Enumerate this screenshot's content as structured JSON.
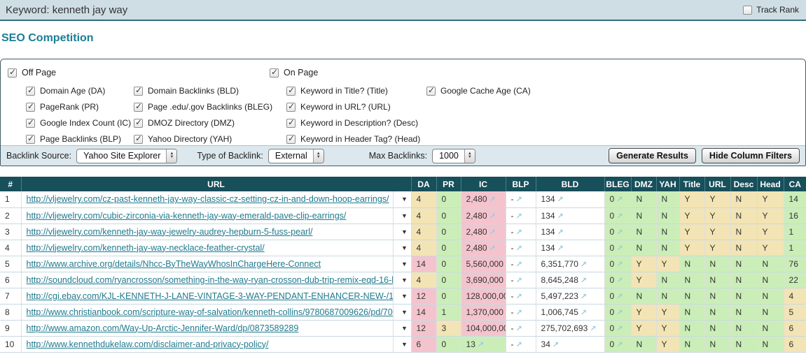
{
  "header": {
    "keyword_label": "Keyword: kenneth jay way",
    "track_rank_label": "Track Rank"
  },
  "page_title": "SEO Competition",
  "filters": {
    "off_page": {
      "label": "Off Page",
      "items": [
        "Domain Age (DA)",
        "PageRank (PR)",
        "Google Index Count (IC)",
        "Page Backlinks (BLP)",
        "Domain Backlinks (BLD)",
        "Page .edu/.gov Backlinks (BLEG)",
        "DMOZ Directory (DMZ)",
        "Yahoo Directory (YAH)"
      ]
    },
    "on_page": {
      "label": "On Page",
      "items": [
        "Keyword in Title? (Title)",
        "Keyword in URL? (URL)",
        "Keyword in Description? (Desc)",
        "Keyword in Header Tag? (Head)",
        "Google Cache Age (CA)"
      ]
    }
  },
  "toolbar": {
    "backlink_source_label": "Backlink Source:",
    "backlink_source_value": "Yahoo Site Explorer",
    "type_label": "Type of Backlink:",
    "type_value": "External",
    "max_label": "Max Backlinks:",
    "max_value": "1000",
    "generate_button": "Generate Results",
    "hide_filters_button": "Hide Column Filters"
  },
  "colors": {
    "header_teal": "#174f5a",
    "good_green": "#cbeeb9",
    "warn_tan": "#f2e4b4",
    "bad_pink": "#f4c4ce",
    "link_teal": "#1e7a8e",
    "arrow_blue": "#9ccbd9"
  },
  "table": {
    "columns": [
      "#",
      "URL",
      "DA",
      "PR",
      "IC",
      "BLP",
      "BLD",
      "BLEG",
      "DMZ",
      "YAH",
      "Title",
      "URL",
      "Desc",
      "Head",
      "CA"
    ],
    "rows": [
      {
        "num": "1",
        "url": "http://vljewelry.com/cz-past-kenneth-jay-way-classic-cz-setting-cz-in-and-down-hoop-earrings/",
        "da": [
          "4",
          "tan"
        ],
        "pr": [
          "0",
          "green"
        ],
        "ic": [
          "2,480",
          "pink"
        ],
        "blp": [
          "-",
          "white"
        ],
        "bld": [
          "134",
          "white"
        ],
        "bleg": [
          "0",
          "green"
        ],
        "dmz": [
          "N",
          "green"
        ],
        "yah": [
          "N",
          "green"
        ],
        "title": [
          "Y",
          "tan"
        ],
        "url2": [
          "Y",
          "tan"
        ],
        "desc": [
          "N",
          "tan"
        ],
        "head": [
          "Y",
          "tan"
        ],
        "ca": [
          "14",
          "green"
        ]
      },
      {
        "num": "2",
        "url": "http://vljewelry.com/cubic-zirconia-via-kenneth-jay-way-emerald-pave-clip-earrings/",
        "da": [
          "4",
          "tan"
        ],
        "pr": [
          "0",
          "green"
        ],
        "ic": [
          "2,480",
          "pink"
        ],
        "blp": [
          "-",
          "white"
        ],
        "bld": [
          "134",
          "white"
        ],
        "bleg": [
          "0",
          "green"
        ],
        "dmz": [
          "N",
          "green"
        ],
        "yah": [
          "N",
          "green"
        ],
        "title": [
          "Y",
          "tan"
        ],
        "url2": [
          "Y",
          "tan"
        ],
        "desc": [
          "N",
          "tan"
        ],
        "head": [
          "Y",
          "tan"
        ],
        "ca": [
          "16",
          "green"
        ]
      },
      {
        "num": "3",
        "url": "http://vljewelry.com/kenneth-jay-way-jewelry-audrey-hepburn-5-fuss-pearl/",
        "da": [
          "4",
          "tan"
        ],
        "pr": [
          "0",
          "green"
        ],
        "ic": [
          "2,480",
          "pink"
        ],
        "blp": [
          "-",
          "white"
        ],
        "bld": [
          "134",
          "white"
        ],
        "bleg": [
          "0",
          "green"
        ],
        "dmz": [
          "N",
          "green"
        ],
        "yah": [
          "N",
          "green"
        ],
        "title": [
          "Y",
          "tan"
        ],
        "url2": [
          "Y",
          "tan"
        ],
        "desc": [
          "N",
          "tan"
        ],
        "head": [
          "Y",
          "tan"
        ],
        "ca": [
          "1",
          "green"
        ]
      },
      {
        "num": "4",
        "url": "http://vljewelry.com/kenneth-jay-way-necklace-feather-crystal/",
        "da": [
          "4",
          "tan"
        ],
        "pr": [
          "0",
          "green"
        ],
        "ic": [
          "2,480",
          "pink"
        ],
        "blp": [
          "-",
          "white"
        ],
        "bld": [
          "134",
          "white"
        ],
        "bleg": [
          "0",
          "green"
        ],
        "dmz": [
          "N",
          "green"
        ],
        "yah": [
          "N",
          "green"
        ],
        "title": [
          "Y",
          "tan"
        ],
        "url2": [
          "Y",
          "tan"
        ],
        "desc": [
          "N",
          "tan"
        ],
        "head": [
          "Y",
          "tan"
        ],
        "ca": [
          "1",
          "green"
        ]
      },
      {
        "num": "5",
        "url": "http://www.archive.org/details/Nhcc-ByTheWayWhosInChargeHere-Connect",
        "da": [
          "14",
          "pink"
        ],
        "pr": [
          "0",
          "green"
        ],
        "ic": [
          "5,560,000",
          "pink"
        ],
        "blp": [
          "-",
          "white"
        ],
        "bld": [
          "6,351,770",
          "white"
        ],
        "bleg": [
          "0",
          "green"
        ],
        "dmz": [
          "Y",
          "tan"
        ],
        "yah": [
          "Y",
          "tan"
        ],
        "title": [
          "N",
          "green"
        ],
        "url2": [
          "N",
          "green"
        ],
        "desc": [
          "N",
          "green"
        ],
        "head": [
          "N",
          "green"
        ],
        "ca": [
          "76",
          "green"
        ]
      },
      {
        "num": "6",
        "url": "http://soundcloud.com/ryancrosson/something-in-the-way-ryan-crosson-dub-trip-remix-eqd-16-b",
        "da": [
          "4",
          "tan"
        ],
        "pr": [
          "0",
          "green"
        ],
        "ic": [
          "3,690,000",
          "pink"
        ],
        "blp": [
          "-",
          "white"
        ],
        "bld": [
          "8,645,248",
          "white"
        ],
        "bleg": [
          "0",
          "green"
        ],
        "dmz": [
          "Y",
          "tan"
        ],
        "yah": [
          "N",
          "green"
        ],
        "title": [
          "N",
          "green"
        ],
        "url2": [
          "N",
          "green"
        ],
        "desc": [
          "N",
          "green"
        ],
        "head": [
          "N",
          "green"
        ],
        "ca": [
          "22",
          "green"
        ]
      },
      {
        "num": "7",
        "url": "http://cgi.ebay.com/KJL-KENNETH-J-LANE-VINTAGE-3-WAY-PENDANT-ENHANCER-NEW-/1304",
        "da": [
          "12",
          "pink"
        ],
        "pr": [
          "0",
          "green"
        ],
        "ic": [
          "128,000,000",
          "pink"
        ],
        "blp": [
          "-",
          "white"
        ],
        "bld": [
          "5,497,223",
          "white"
        ],
        "bleg": [
          "0",
          "green"
        ],
        "dmz": [
          "N",
          "green"
        ],
        "yah": [
          "N",
          "green"
        ],
        "title": [
          "N",
          "green"
        ],
        "url2": [
          "N",
          "green"
        ],
        "desc": [
          "N",
          "green"
        ],
        "head": [
          "N",
          "green"
        ],
        "ca": [
          "4",
          "tan"
        ]
      },
      {
        "num": "8",
        "url": "http://www.christianbook.com/scripture-way-of-salvation/kenneth-collins/9780687009626/pd/700",
        "da": [
          "14",
          "pink"
        ],
        "pr": [
          "1",
          "green"
        ],
        "ic": [
          "1,370,000",
          "pink"
        ],
        "blp": [
          "-",
          "white"
        ],
        "bld": [
          "1,006,745",
          "white"
        ],
        "bleg": [
          "0",
          "green"
        ],
        "dmz": [
          "Y",
          "tan"
        ],
        "yah": [
          "Y",
          "tan"
        ],
        "title": [
          "N",
          "green"
        ],
        "url2": [
          "N",
          "green"
        ],
        "desc": [
          "N",
          "green"
        ],
        "head": [
          "N",
          "green"
        ],
        "ca": [
          "5",
          "tan"
        ]
      },
      {
        "num": "9",
        "url": "http://www.amazon.com/Way-Up-Arctic-Jennifer-Ward/dp/0873589289",
        "da": [
          "12",
          "pink"
        ],
        "pr": [
          "3",
          "tan"
        ],
        "ic": [
          "104,000,000",
          "pink"
        ],
        "blp": [
          "-",
          "white"
        ],
        "bld": [
          "275,702,693",
          "white"
        ],
        "bleg": [
          "0",
          "green"
        ],
        "dmz": [
          "Y",
          "tan"
        ],
        "yah": [
          "Y",
          "tan"
        ],
        "title": [
          "N",
          "green"
        ],
        "url2": [
          "N",
          "green"
        ],
        "desc": [
          "N",
          "green"
        ],
        "head": [
          "N",
          "green"
        ],
        "ca": [
          "6",
          "tan"
        ]
      },
      {
        "num": "10",
        "url": "http://www.kennethdukelaw.com/disclaimer-and-privacy-policy/",
        "da": [
          "6",
          "pink"
        ],
        "pr": [
          "0",
          "green"
        ],
        "ic": [
          "13",
          "green"
        ],
        "blp": [
          "-",
          "white"
        ],
        "bld": [
          "34",
          "white"
        ],
        "bleg": [
          "0",
          "green"
        ],
        "dmz": [
          "N",
          "green"
        ],
        "yah": [
          "Y",
          "tan"
        ],
        "title": [
          "N",
          "green"
        ],
        "url2": [
          "N",
          "green"
        ],
        "desc": [
          "N",
          "green"
        ],
        "head": [
          "N",
          "green"
        ],
        "ca": [
          "6",
          "tan"
        ]
      }
    ]
  }
}
